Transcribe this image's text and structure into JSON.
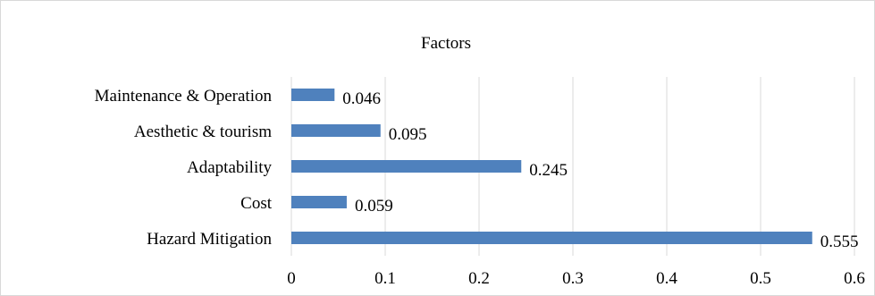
{
  "chart_data": {
    "type": "bar",
    "orientation": "horizontal",
    "title": "Factors",
    "xlabel": "",
    "ylabel": "",
    "categories": [
      "Maintenance & Operation",
      "Aesthetic & tourism",
      "Adaptability",
      "Cost",
      "Hazard Mitigation"
    ],
    "values": [
      0.046,
      0.095,
      0.245,
      0.059,
      0.555
    ],
    "data_labels": [
      "0.046",
      "0.095",
      "0.245",
      "0.059",
      "0.555"
    ],
    "xlim": [
      0,
      0.6
    ],
    "ticks": [
      0,
      0.1,
      0.2,
      0.3,
      0.4,
      0.5,
      0.6
    ],
    "tick_labels": [
      "0",
      "0.1",
      "0.2",
      "0.3",
      "0.4",
      "0.5",
      "0.6"
    ],
    "grid": "vertical",
    "legend": "none",
    "bar_color": "#4f81bd",
    "grid_color": "#d9d9d9"
  }
}
